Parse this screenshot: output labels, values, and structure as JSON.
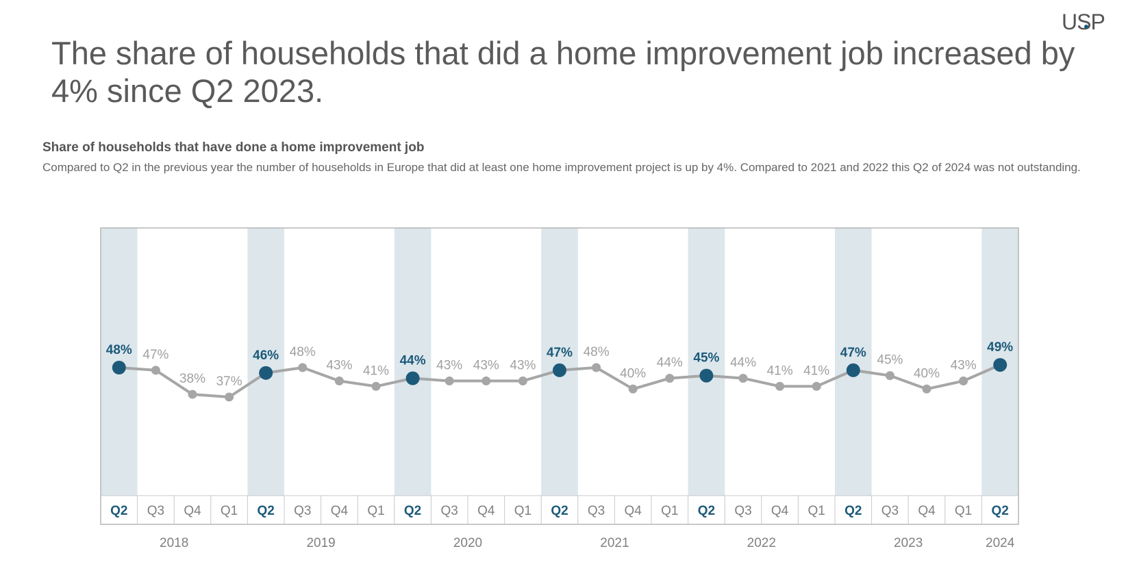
{
  "logo": "USP",
  "headline": "The share of households that did a home improvement job increased by 4% since Q2 2023.",
  "subtitle": "Share of households that have done a home improvement job",
  "description": "Compared to Q2 in the previous year the number of households in Europe that did at least one home improvement project is up by 4%. Compared to 2021 and 2022 this Q2 of 2024 was not outstanding.",
  "colors": {
    "highlight": "#1d5a7a",
    "highlight_band": "#dce6eb",
    "line": "#a6a6a6",
    "label": "#a0a0a0",
    "year_label": "#808080"
  },
  "chart_data": {
    "type": "line",
    "title": "Share of households that have done a home improvement job",
    "xlabel": "",
    "ylabel": "",
    "categories": [
      "Q2",
      "Q3",
      "Q4",
      "Q1",
      "Q2",
      "Q3",
      "Q4",
      "Q1",
      "Q2",
      "Q3",
      "Q4",
      "Q1",
      "Q2",
      "Q3",
      "Q4",
      "Q1",
      "Q2",
      "Q3",
      "Q4",
      "Q1",
      "Q2",
      "Q3",
      "Q4",
      "Q1",
      "Q2"
    ],
    "values": [
      48,
      47,
      38,
      37,
      46,
      48,
      43,
      41,
      44,
      43,
      43,
      43,
      47,
      48,
      40,
      44,
      45,
      44,
      41,
      41,
      47,
      45,
      40,
      43,
      49
    ],
    "data_labels": [
      "48%",
      "47%",
      "38%",
      "37%",
      "46%",
      "48%",
      "43%",
      "41%",
      "44%",
      "43%",
      "43%",
      "43%",
      "47%",
      "48%",
      "40%",
      "44%",
      "45%",
      "44%",
      "41%",
      "41%",
      "47%",
      "45%",
      "40%",
      "43%",
      "49%"
    ],
    "highlight_category": "Q2",
    "years": [
      {
        "label": "2018",
        "start": 0,
        "end": 3
      },
      {
        "label": "2019",
        "start": 4,
        "end": 7
      },
      {
        "label": "2020",
        "start": 8,
        "end": 11
      },
      {
        "label": "2021",
        "start": 12,
        "end": 15
      },
      {
        "label": "2022",
        "start": 16,
        "end": 19
      },
      {
        "label": "2023",
        "start": 20,
        "end": 23
      },
      {
        "label": "2024",
        "start": 24,
        "end": 24
      }
    ],
    "grid": false,
    "legend": "none"
  }
}
